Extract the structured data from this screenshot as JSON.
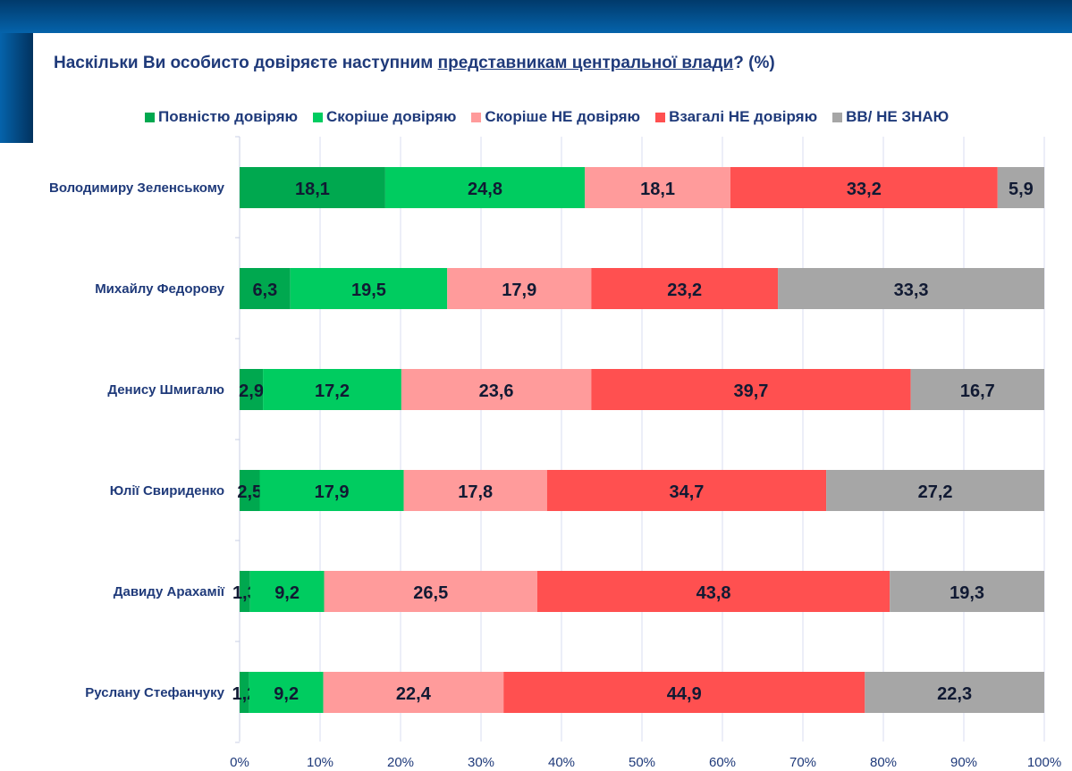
{
  "title": {
    "before": "Наскільки Ви особисто довіряєте наступним ",
    "underlined": "представникам центральної влади",
    "after": "? (%)"
  },
  "chart_data": {
    "type": "bar",
    "orientation": "horizontal",
    "stacked": true,
    "categories": [
      "Володимиру Зеленському",
      "Михайлу Федорову",
      "Денису Шмигалю",
      "Юлії Свириденко",
      "Давиду Арахамії",
      "Руслану Стефанчуку"
    ],
    "series": [
      {
        "name": "Повністю довіряю",
        "color": "#00a84f",
        "values": [
          18.1,
          6.3,
          2.9,
          2.5,
          1.3,
          1.2
        ]
      },
      {
        "name": "Скоріше довіряю",
        "color": "#00cc60",
        "values": [
          24.8,
          19.5,
          17.2,
          17.9,
          9.2,
          9.2
        ]
      },
      {
        "name": "Скоріше НЕ довіряю",
        "color": "#ff9b9b",
        "values": [
          18.1,
          17.9,
          23.6,
          17.8,
          26.5,
          22.4
        ]
      },
      {
        "name": "Взагалі НЕ  довіряю",
        "color": "#ff5050",
        "values": [
          33.2,
          23.2,
          39.7,
          34.7,
          43.8,
          44.9
        ]
      },
      {
        "name": "ВВ/ НЕ ЗНАЮ",
        "color": "#a6a6a6",
        "values": [
          5.9,
          33.3,
          16.7,
          27.2,
          19.3,
          22.3
        ]
      }
    ],
    "xlim": [
      0,
      100
    ],
    "xticks": [
      "0%",
      "10%",
      "20%",
      "30%",
      "40%",
      "50%",
      "60%",
      "70%",
      "80%",
      "90%",
      "100%"
    ],
    "grid": true,
    "legend": "top"
  }
}
